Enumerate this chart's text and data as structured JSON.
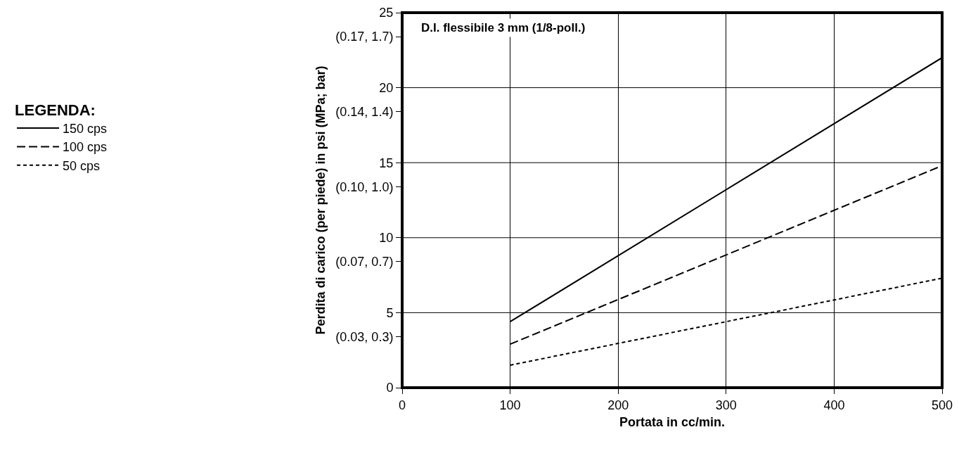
{
  "chart_data": {
    "type": "line",
    "xlabel": "Portata in cc/min.",
    "ylabel": "Perdita di carico (per piede) in psi (MPa; bar)",
    "legend_title": "LEGENDA:",
    "annotations": [
      "D.I. flessibile 3 mm (1/8-poll.)"
    ],
    "x": [
      100,
      500
    ],
    "series": [
      {
        "name": "150 cps",
        "color": "#000000",
        "values": [
          4.4,
          22.0
        ],
        "line_style": "solid"
      },
      {
        "name": "100 cps",
        "color": "#000000",
        "values": [
          2.9,
          14.8
        ],
        "line_style": "dashed"
      },
      {
        "name": "50 cps",
        "color": "#000000",
        "values": [
          1.5,
          7.3
        ],
        "line_style": "dotted"
      }
    ],
    "xlim": [
      0,
      500
    ],
    "xticks": [
      0,
      100,
      200,
      300,
      400,
      500
    ],
    "ylim": [
      0,
      25
    ],
    "yticks": [
      0,
      5,
      10,
      15,
      20,
      25,
      {
        "value": 23.4,
        "label": "(0.17, 1.7)"
      },
      {
        "value": 18.4,
        "label": "(0.14, 1.4)"
      },
      {
        "value": 13.4,
        "label": "(0.10, 1.0)"
      },
      {
        "value": 8.4,
        "label": "(0.07, 0.7)"
      },
      {
        "value": 3.4,
        "label": "(0.03, 0.3)"
      }
    ],
    "grid": true,
    "legend": "left",
    "marker": "none"
  }
}
